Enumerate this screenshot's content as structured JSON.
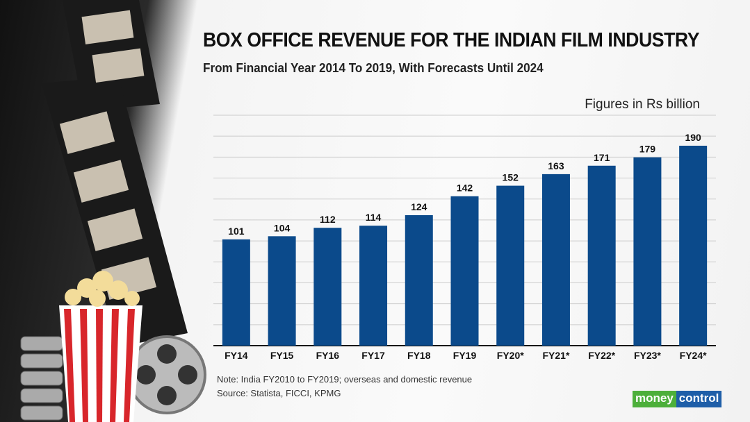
{
  "colors": {
    "bar": "#0b4a8b",
    "grid": "#cccccc",
    "axis": "#111111"
  },
  "chart_data": {
    "type": "bar",
    "title": "BOX OFFICE REVENUE FOR THE INDIAN FILM INDUSTRY",
    "subtitle": "From Financial Year 2014 To 2019, With Forecasts Until 2024",
    "ylabel": "Figures in Rs billion",
    "xlabel": "",
    "categories": [
      "FY14",
      "FY15",
      "FY16",
      "FY17",
      "FY18",
      "FY19",
      "FY20*",
      "FY21*",
      "FY22*",
      "FY23*",
      "FY24*"
    ],
    "values": [
      101,
      104,
      112,
      114,
      124,
      142,
      152,
      163,
      171,
      179,
      190
    ],
    "ylim": [
      0,
      219
    ],
    "grid": true,
    "gridlines": 11
  },
  "footer": {
    "note": "Note: India FY2010 to FY2019; overseas and domestic revenue",
    "source": "Source: Statista, FICCI, KPMG"
  },
  "logo": {
    "part1": "money",
    "part2": "control"
  }
}
